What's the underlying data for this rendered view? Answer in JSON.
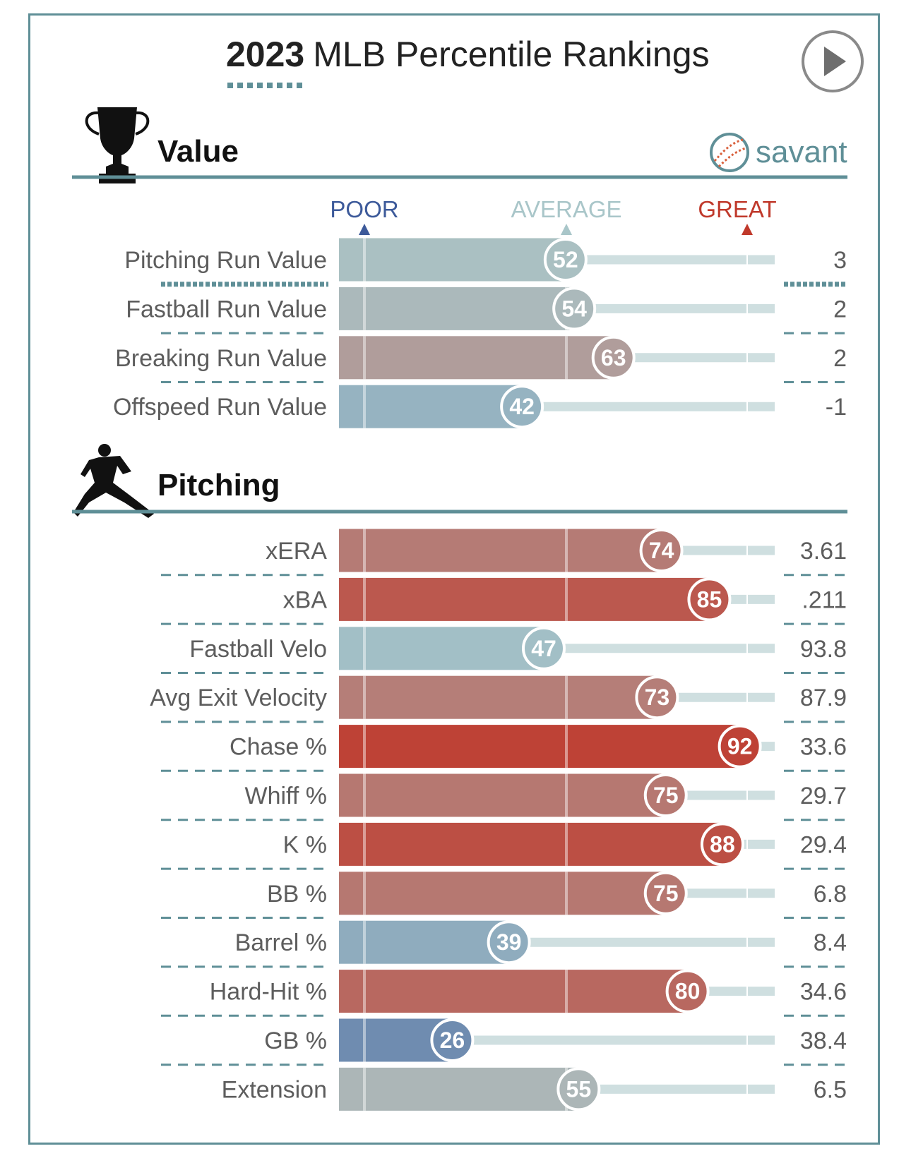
{
  "title": {
    "year": "2023",
    "rest": "MLB Percentile Rankings"
  },
  "brand": {
    "name": "savant"
  },
  "scale": {
    "poor": "POOR",
    "average": "AVERAGE",
    "great": "GREAT"
  },
  "colors": {
    "frame": "#5f8f97",
    "poor": "#3d5a9a",
    "average": "#a9c6c9",
    "great": "#c0392b",
    "track": "#cfdfe0"
  },
  "icons": {
    "value_section": "trophy-icon",
    "pitching_section": "pitcher-icon",
    "play": "play-icon",
    "brand": "baseball-icon"
  },
  "chart_data": [
    {
      "type": "bar",
      "section": "Value",
      "categories": [
        "Pitching Run Value",
        "Fastball Run Value",
        "Breaking Run Value",
        "Offspeed Run Value"
      ],
      "percentiles": [
        52,
        54,
        63,
        42
      ],
      "stat_values": [
        "3",
        "2",
        "2",
        "-1"
      ],
      "xlim": [
        0,
        100
      ]
    },
    {
      "type": "bar",
      "section": "Pitching",
      "categories": [
        "xERA",
        "xBA",
        "Fastball Velo",
        "Avg Exit Velocity",
        "Chase %",
        "Whiff %",
        "K %",
        "BB %",
        "Barrel %",
        "Hard-Hit %",
        "GB %",
        "Extension"
      ],
      "percentiles": [
        74,
        85,
        47,
        73,
        92,
        75,
        88,
        75,
        39,
        80,
        26,
        55
      ],
      "stat_values": [
        "3.61",
        ".211",
        "93.8",
        "87.9",
        "33.6",
        "29.7",
        "29.4",
        "6.8",
        "8.4",
        "34.6",
        "38.4",
        "6.5"
      ],
      "xlim": [
        0,
        100
      ]
    }
  ]
}
